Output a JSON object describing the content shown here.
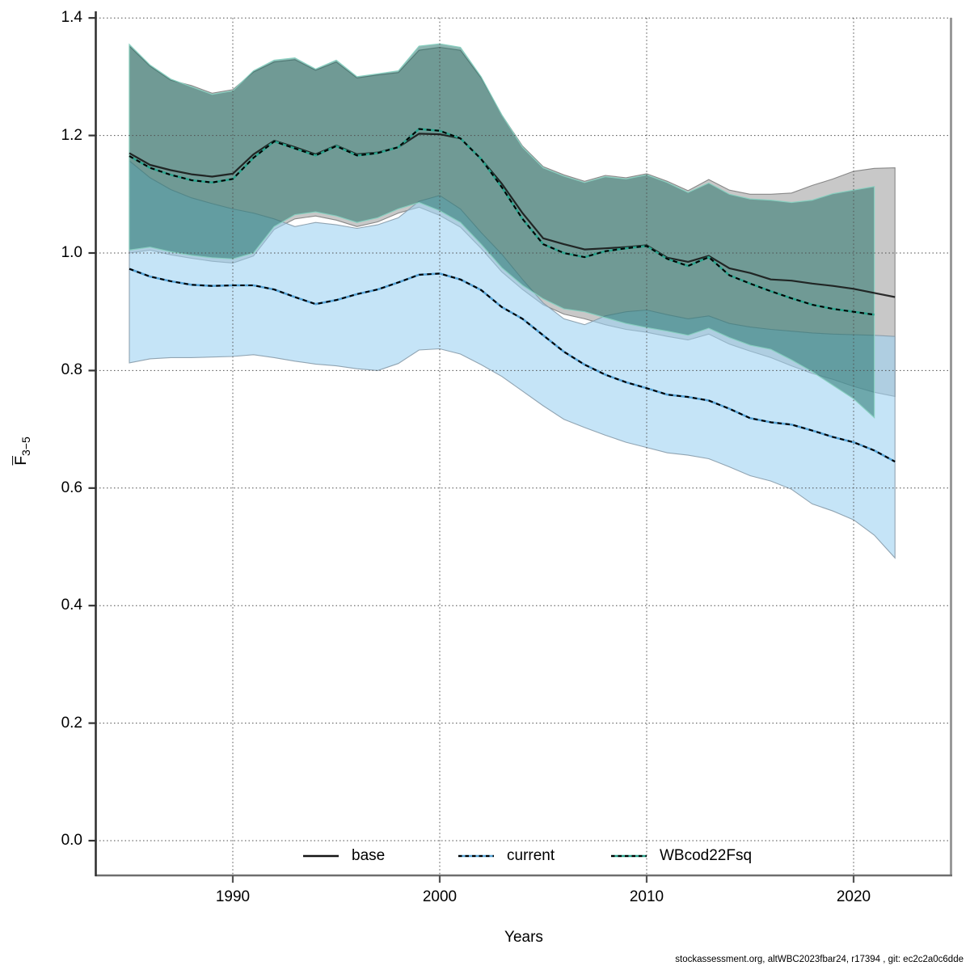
{
  "meta": {
    "footer": "stockassessment.org, altWBC2023fbar24, r17394 , git: ec2c2a0c6dde"
  },
  "chart_data": {
    "type": "line",
    "title": "",
    "xlabel": "Years",
    "ylabel_main": "F",
    "ylabel_sub": "3−5",
    "xlim": [
      1985,
      2022
    ],
    "ylim": [
      0.0,
      1.4
    ],
    "grid": true,
    "legend_position": "bottom-center-inside",
    "x_ticks": [
      1990,
      2000,
      2010,
      2020
    ],
    "y_ticks": [
      0.0,
      0.2,
      0.4,
      0.6,
      0.8,
      1.0,
      1.2,
      1.4
    ],
    "years": [
      1985,
      1986,
      1987,
      1988,
      1989,
      1990,
      1991,
      1992,
      1993,
      1994,
      1995,
      1996,
      1997,
      1998,
      1999,
      2000,
      2001,
      2002,
      2003,
      2004,
      2005,
      2006,
      2007,
      2008,
      2009,
      2010,
      2011,
      2012,
      2013,
      2014,
      2015,
      2016,
      2017,
      2018,
      2019,
      2020,
      2021,
      2022
    ],
    "series": [
      {
        "name": "base",
        "line_style": "solid",
        "line_color": "#141414",
        "band_fill": "rgba(110,110,110,0.38)",
        "band_edge": "rgba(120,120,120,0.85)",
        "start_year": 1985,
        "values": [
          1.17,
          1.15,
          1.141,
          1.134,
          1.13,
          1.135,
          1.168,
          1.191,
          1.18,
          1.168,
          1.183,
          1.168,
          1.171,
          1.18,
          1.203,
          1.202,
          1.195,
          1.16,
          1.118,
          1.068,
          1.025,
          1.015,
          1.006,
          1.008,
          1.01,
          1.013,
          0.992,
          0.985,
          0.995,
          0.974,
          0.966,
          0.955,
          0.953,
          0.948,
          0.944,
          0.939,
          0.932,
          0.925
        ],
        "lo": [
          1.0,
          1.005,
          0.997,
          0.991,
          0.986,
          0.983,
          0.995,
          1.04,
          1.058,
          1.063,
          1.056,
          1.045,
          1.053,
          1.068,
          1.078,
          1.064,
          1.044,
          1.008,
          0.968,
          0.938,
          0.912,
          0.896,
          0.888,
          0.878,
          0.87,
          0.865,
          0.858,
          0.852,
          0.862,
          0.845,
          0.833,
          0.822,
          0.808,
          0.795,
          0.785,
          0.773,
          0.763,
          0.756
        ],
        "hi": [
          1.352,
          1.318,
          1.294,
          1.285,
          1.272,
          1.278,
          1.308,
          1.325,
          1.329,
          1.311,
          1.325,
          1.298,
          1.303,
          1.307,
          1.345,
          1.35,
          1.345,
          1.298,
          1.235,
          1.182,
          1.147,
          1.133,
          1.122,
          1.132,
          1.128,
          1.135,
          1.122,
          1.106,
          1.125,
          1.107,
          1.1,
          1.1,
          1.102,
          1.115,
          1.126,
          1.139,
          1.144,
          1.145
        ]
      },
      {
        "name": "current",
        "line_style": "dashed",
        "line_color": "#55a3d6",
        "band_fill": "rgba(158,210,242,0.60)",
        "band_edge": "rgba(135,155,170,0.90)",
        "start_year": 1985,
        "values": [
          0.973,
          0.96,
          0.952,
          0.946,
          0.944,
          0.945,
          0.945,
          0.938,
          0.925,
          0.913,
          0.92,
          0.93,
          0.938,
          0.95,
          0.963,
          0.965,
          0.955,
          0.937,
          0.908,
          0.888,
          0.86,
          0.832,
          0.81,
          0.793,
          0.78,
          0.77,
          0.759,
          0.755,
          0.749,
          0.735,
          0.719,
          0.712,
          0.708,
          0.698,
          0.687,
          0.678,
          0.664,
          0.645
        ],
        "lo": [
          0.813,
          0.82,
          0.822,
          0.822,
          0.823,
          0.824,
          0.827,
          0.822,
          0.816,
          0.811,
          0.808,
          0.803,
          0.8,
          0.812,
          0.835,
          0.837,
          0.828,
          0.81,
          0.79,
          0.765,
          0.74,
          0.717,
          0.703,
          0.69,
          0.678,
          0.669,
          0.66,
          0.656,
          0.65,
          0.636,
          0.621,
          0.612,
          0.598,
          0.573,
          0.561,
          0.546,
          0.52,
          0.481
        ],
        "hi": [
          1.157,
          1.128,
          1.108,
          1.094,
          1.084,
          1.075,
          1.068,
          1.058,
          1.045,
          1.052,
          1.048,
          1.042,
          1.048,
          1.06,
          1.088,
          1.098,
          1.075,
          1.035,
          0.998,
          0.955,
          0.915,
          0.888,
          0.878,
          0.893,
          0.9,
          0.903,
          0.895,
          0.888,
          0.893,
          0.88,
          0.874,
          0.87,
          0.867,
          0.864,
          0.862,
          0.861,
          0.86,
          0.858
        ]
      },
      {
        "name": "WBcod22Fsq",
        "line_style": "dashed",
        "line_color": "#2aa38d",
        "band_fill": "rgba(23,108,98,0.50)",
        "band_edge": "rgba(135,208,192,0.95)",
        "start_year": 1985,
        "values": [
          1.165,
          1.145,
          1.133,
          1.124,
          1.12,
          1.126,
          1.162,
          1.19,
          1.178,
          1.166,
          1.182,
          1.166,
          1.17,
          1.18,
          1.211,
          1.208,
          1.195,
          1.16,
          1.112,
          1.058,
          1.015,
          1.0,
          0.993,
          1.003,
          1.008,
          1.012,
          0.99,
          0.978,
          0.993,
          0.962,
          0.948,
          0.935,
          0.923,
          0.912,
          0.905,
          0.9,
          0.895
        ],
        "lo": [
          1.005,
          1.01,
          1.002,
          0.996,
          0.992,
          0.99,
          1.0,
          1.045,
          1.065,
          1.07,
          1.063,
          1.052,
          1.06,
          1.075,
          1.086,
          1.072,
          1.052,
          1.015,
          0.975,
          0.945,
          0.922,
          0.905,
          0.9,
          0.89,
          0.88,
          0.873,
          0.867,
          0.86,
          0.872,
          0.856,
          0.843,
          0.836,
          0.818,
          0.798,
          0.775,
          0.752,
          0.72
        ],
        "hi": [
          1.355,
          1.32,
          1.296,
          1.283,
          1.27,
          1.276,
          1.31,
          1.328,
          1.332,
          1.313,
          1.328,
          1.3,
          1.305,
          1.31,
          1.352,
          1.356,
          1.35,
          1.3,
          1.235,
          1.18,
          1.145,
          1.131,
          1.12,
          1.13,
          1.126,
          1.133,
          1.12,
          1.103,
          1.119,
          1.1,
          1.092,
          1.09,
          1.086,
          1.09,
          1.101,
          1.107,
          1.113
        ]
      }
    ]
  },
  "axes": {
    "y_tick_labels": [
      "0.0",
      "0.2",
      "0.4",
      "0.6",
      "0.8",
      "1.0",
      "1.2",
      "1.4"
    ],
    "x_tick_labels": [
      "1990",
      "2000",
      "2010",
      "2020"
    ]
  },
  "legend": {
    "items": [
      {
        "label": "base"
      },
      {
        "label": "current"
      },
      {
        "label": "WBcod22Fsq"
      }
    ]
  }
}
